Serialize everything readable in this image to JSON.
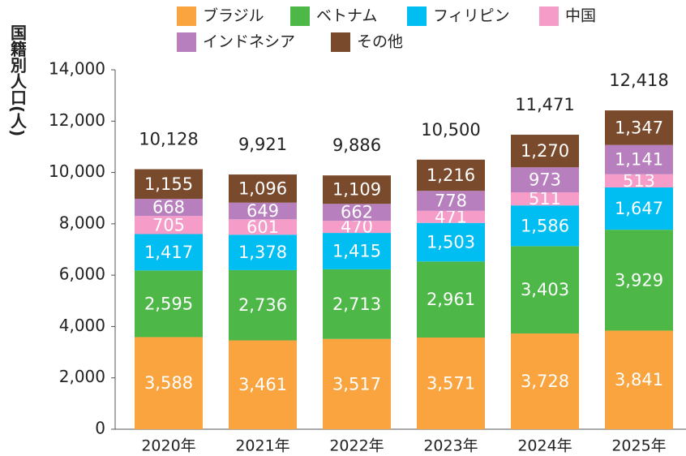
{
  "chart_data": {
    "type": "stacked_bar",
    "y_label": "国籍別人口(人)",
    "categories": [
      "2020年",
      "2021年",
      "2022年",
      "2023年",
      "2024年",
      "2025年"
    ],
    "series": [
      {
        "name": "ブラジル",
        "color": "#f9a43f",
        "values": [
          3588,
          3461,
          3517,
          3571,
          3728,
          3841
        ],
        "value_labels": [
          "3,588",
          "3,461",
          "3,517",
          "3,571",
          "3,728",
          "3,841"
        ]
      },
      {
        "name": "ベトナム",
        "color": "#4db848",
        "values": [
          2595,
          2736,
          2713,
          2961,
          3403,
          3929
        ],
        "value_labels": [
          "2,595",
          "2,736",
          "2,713",
          "2,961",
          "3,403",
          "3,929"
        ]
      },
      {
        "name": "フィリピン",
        "color": "#00bdf2",
        "values": [
          1417,
          1378,
          1415,
          1503,
          1586,
          1647
        ],
        "value_labels": [
          "1,417",
          "1,378",
          "1,415",
          "1,503",
          "1,586",
          "1,647"
        ]
      },
      {
        "name": "中国",
        "color": "#f59cc8",
        "values": [
          705,
          601,
          470,
          471,
          511,
          513
        ]
      },
      {
        "name": "インドネシア",
        "color": "#b77fbd",
        "values": [
          668,
          649,
          662,
          778,
          973,
          1141
        ],
        "value_labels": [
          "668",
          "649",
          "662",
          "778",
          "973",
          "1,141"
        ]
      },
      {
        "name": "その他",
        "color": "#7a4a2c",
        "values": [
          1155,
          1096,
          1109,
          1216,
          1270,
          1347
        ],
        "value_labels": [
          "1,155",
          "1,096",
          "1,109",
          "1,216",
          "1,270",
          "1,347"
        ]
      }
    ],
    "totals": [
      10128,
      9921,
      9886,
      10500,
      11471,
      12418
    ],
    "total_labels": [
      "10,128",
      "9,921",
      "9,886",
      "10,500",
      "11,471",
      "12,418"
    ],
    "ylim": [
      0,
      14000
    ],
    "yticks": [
      0,
      {
        "value": 2000,
        "label": "2,000"
      },
      {
        "value": 4000,
        "label": "4,000"
      },
      {
        "value": 6000,
        "label": "6,000"
      },
      {
        "value": 8000,
        "label": "8,000"
      },
      {
        "value": 10000,
        "label": "10,000"
      },
      {
        "value": 12000,
        "label": "12,000"
      },
      {
        "value": 14000,
        "label": "14,000"
      }
    ],
    "grid": false,
    "legend": "top"
  }
}
